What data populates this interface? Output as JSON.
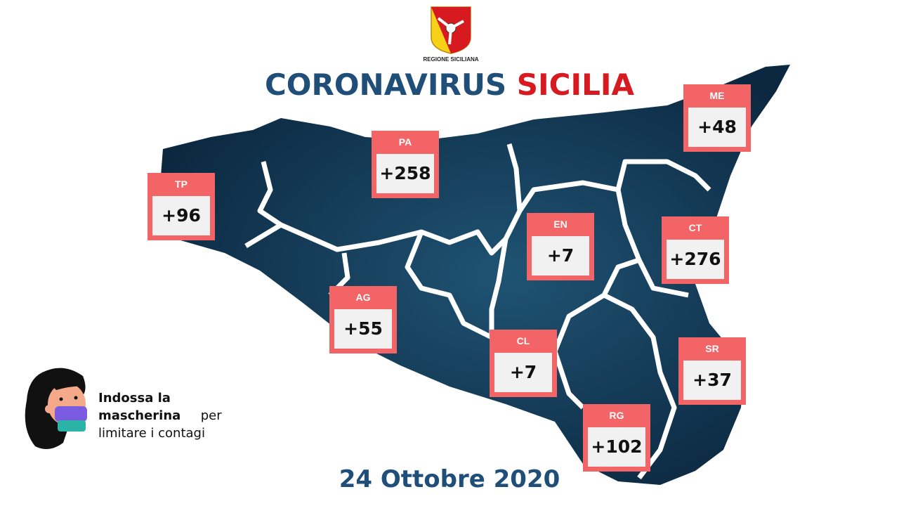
{
  "header": {
    "logo_text": "REGIONE SICILIANA",
    "title_part1": "CORONAVIRUS",
    "title_part2": "SICILIA"
  },
  "colors": {
    "title_blue": "#1f4e79",
    "title_red": "#d71920",
    "badge": "#f26466",
    "map": "#12344f"
  },
  "provinces": [
    {
      "code": "TP",
      "value": "+96"
    },
    {
      "code": "PA",
      "value": "+258"
    },
    {
      "code": "ME",
      "value": "+48"
    },
    {
      "code": "EN",
      "value": "+7"
    },
    {
      "code": "CT",
      "value": "+276"
    },
    {
      "code": "AG",
      "value": "+55"
    },
    {
      "code": "CL",
      "value": "+7"
    },
    {
      "code": "SR",
      "value": "+37"
    },
    {
      "code": "RG",
      "value": "+102"
    }
  ],
  "tip": {
    "bold": "Indossa la mascherina",
    "line_end": "per",
    "line2": "limitare i contagi"
  },
  "date": "24 Ottobre 2020"
}
